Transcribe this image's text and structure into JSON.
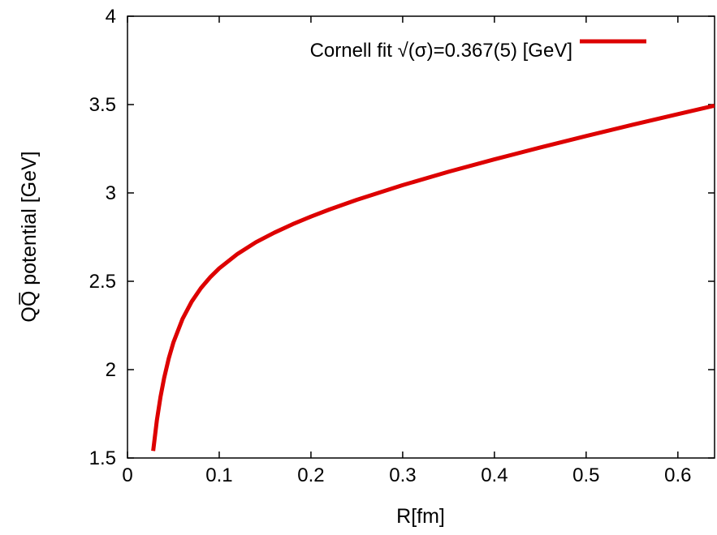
{
  "chart_data": {
    "type": "line",
    "title": "",
    "xlabel": "R[fm]",
    "ylabel": "QQ̅ potential [GeV]",
    "xlim": [
      0,
      0.64
    ],
    "ylim": [
      1.5,
      4
    ],
    "x_ticks": [
      0,
      0.1,
      0.2,
      0.3,
      0.4,
      0.5,
      0.6
    ],
    "x_tick_labels": [
      "0",
      "0.1",
      "0.2",
      "0.3",
      "0.4",
      "0.5",
      "0.6"
    ],
    "y_ticks": [
      1.5,
      2,
      2.5,
      3,
      3.5,
      4
    ],
    "y_tick_labels": [
      "1.5",
      "2",
      "2.5",
      "3",
      "3.5",
      "4"
    ],
    "grid": false,
    "legend_position": "top-right",
    "series": [
      {
        "name": "Cornell fit √(σ)=0.367(5) [GeV]",
        "color": "#dd0000",
        "x": [
          0.028,
          0.032,
          0.036,
          0.04,
          0.045,
          0.05,
          0.06,
          0.07,
          0.08,
          0.09,
          0.1,
          0.12,
          0.14,
          0.16,
          0.18,
          0.2,
          0.22,
          0.25,
          0.3,
          0.35,
          0.4,
          0.45,
          0.5,
          0.55,
          0.6,
          0.64
        ],
        "y": [
          1.54,
          1.712,
          1.846,
          1.954,
          2.064,
          2.153,
          2.287,
          2.385,
          2.461,
          2.522,
          2.573,
          2.655,
          2.721,
          2.775,
          2.823,
          2.866,
          2.906,
          2.961,
          3.044,
          3.12,
          3.19,
          3.257,
          3.322,
          3.385,
          3.446,
          3.494
        ]
      }
    ]
  }
}
